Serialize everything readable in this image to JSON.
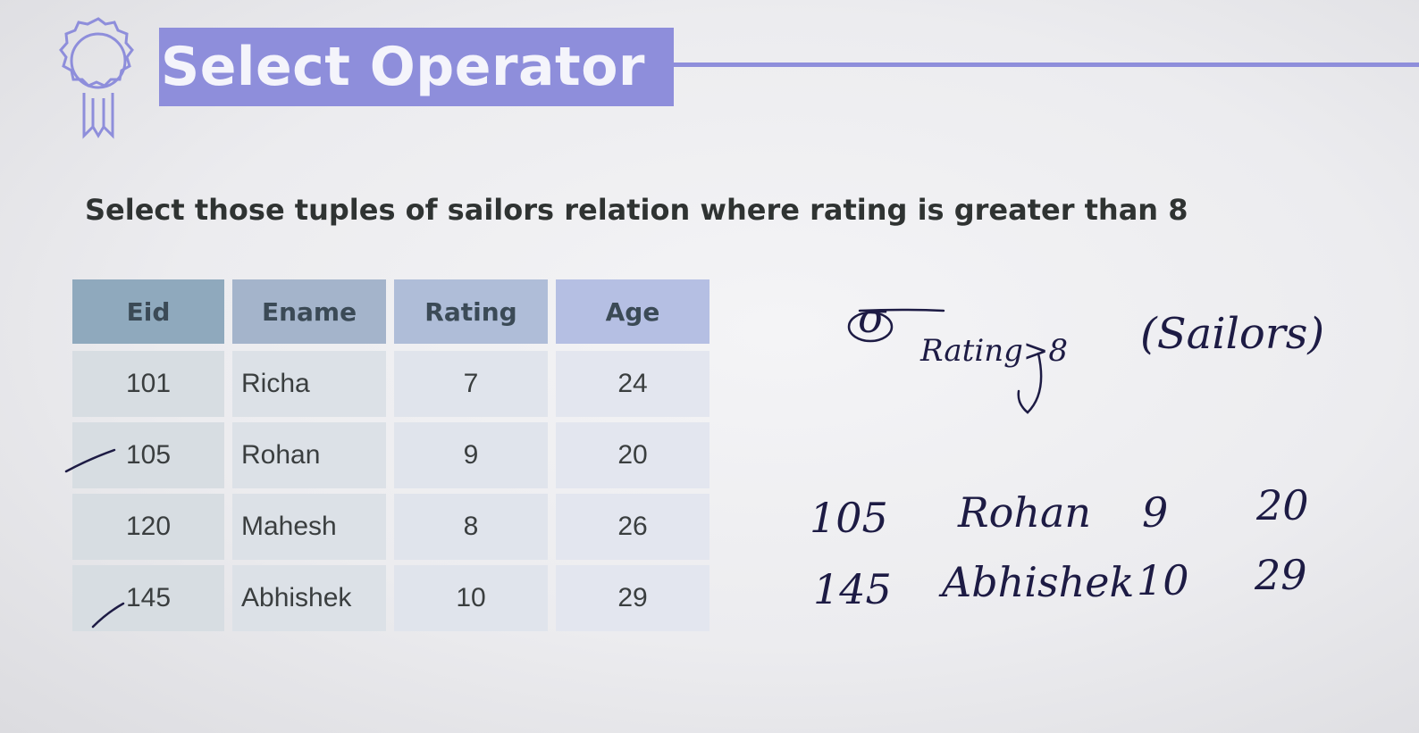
{
  "slide": {
    "title": "Select Operator",
    "question": "Select those tuples of sailors relation where rating is greater than 8",
    "badge_icon": "award-ribbon-icon",
    "accent_color": "#8e8edb"
  },
  "table": {
    "columns": [
      "Eid",
      "Ename",
      "Rating",
      "Age"
    ],
    "rows": [
      {
        "eid": "101",
        "ename": "Richa",
        "rating": "7",
        "age": "24"
      },
      {
        "eid": "105",
        "ename": "Rohan",
        "rating": "9",
        "age": "20"
      },
      {
        "eid": "120",
        "ename": "Mahesh",
        "rating": "8",
        "age": "26"
      },
      {
        "eid": "145",
        "ename": "Abhishek",
        "rating": "10",
        "age": "29"
      }
    ]
  },
  "handwriting": {
    "sigma": "σ",
    "condition": "Rating>8",
    "relation": "(Sailors)",
    "results": [
      {
        "eid": "105",
        "ename": "Rohan",
        "rating": "9",
        "age": "20"
      },
      {
        "eid": "145",
        "ename": "Abhishek",
        "rating": "10",
        "age": "29"
      }
    ]
  }
}
